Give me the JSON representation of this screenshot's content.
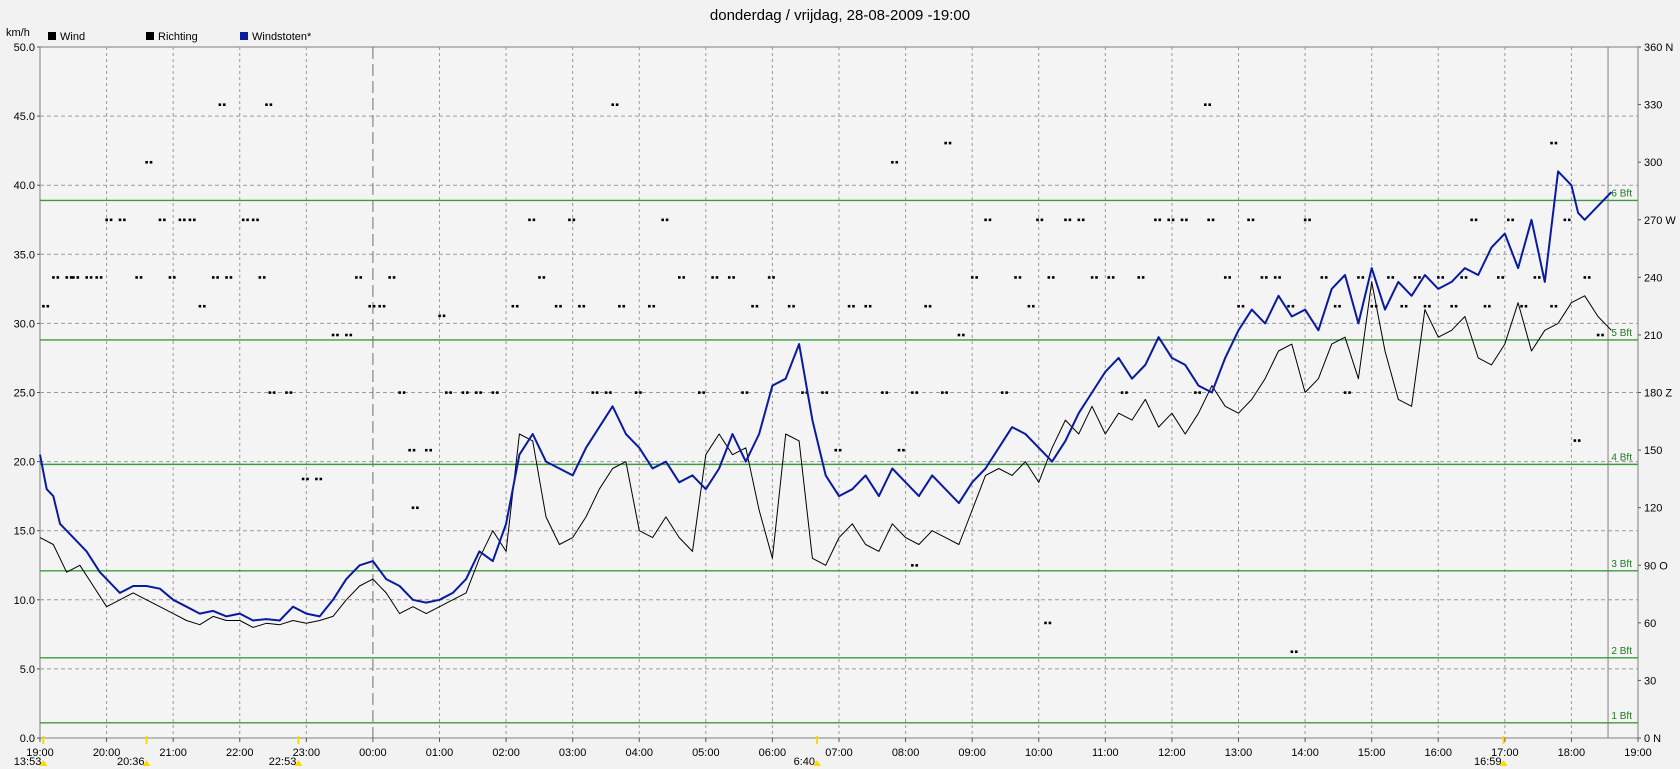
{
  "chart_data": {
    "type": "line",
    "title": "donderdag / vrijdag, 28-08-2009  -19:00",
    "y_unit": "km/h",
    "ylim": [
      0,
      50
    ],
    "y_ticks": [
      "0.0",
      "5.0",
      "10.0",
      "15.0",
      "20.0",
      "25.0",
      "30.0",
      "35.0",
      "40.0",
      "45.0",
      "50.0"
    ],
    "y2lim": [
      0,
      360
    ],
    "y2_ticks": [
      "0 N",
      "30",
      "60",
      "90 O",
      "120",
      "150",
      "180 Z",
      "210",
      "240",
      "270 W",
      "300",
      "330",
      "360 N"
    ],
    "x_ticks": [
      "19:00",
      "20:00",
      "21:00",
      "22:00",
      "23:00",
      "00:00",
      "01:00",
      "02:00",
      "03:00",
      "04:00",
      "05:00",
      "06:00",
      "07:00",
      "08:00",
      "09:00",
      "10:00",
      "11:00",
      "12:00",
      "13:00",
      "14:00",
      "15:00",
      "16:00",
      "17:00",
      "18:00",
      "19:00"
    ],
    "legend": [
      {
        "label": "Wind",
        "color": "#000000"
      },
      {
        "label": "Richting",
        "color": "#000000"
      },
      {
        "label": "Windstoten*",
        "color": "#0a1aa0"
      }
    ],
    "beaufort": [
      {
        "label": "1 Bft",
        "value": 1.1
      },
      {
        "label": "2 Bft",
        "value": 5.8
      },
      {
        "label": "3 Bft",
        "value": 12.1
      },
      {
        "label": "4 Bft",
        "value": 19.8
      },
      {
        "label": "5 Bft",
        "value": 28.8
      },
      {
        "label": "6 Bft",
        "value": 38.9
      }
    ],
    "midnight_hour": 5,
    "events": [
      {
        "label": "13:53",
        "hour": 0.05,
        "color": "#ffd800"
      },
      {
        "label": "20:36",
        "hour": 1.6,
        "color": "#ffd800"
      },
      {
        "label": "22:53",
        "hour": 3.88,
        "color": "#ffd800"
      },
      {
        "label": "6:40",
        "hour": 11.67,
        "color": "#ffd800"
      },
      {
        "label": "16:59",
        "hour": 21.98,
        "color": "#ffd800"
      }
    ],
    "series": [
      {
        "name": "Windstoten*",
        "color": "#0a1aa0",
        "x": [
          0,
          0.1,
          0.2,
          0.3,
          0.5,
          0.7,
          0.9,
          1.0,
          1.2,
          1.4,
          1.6,
          1.8,
          2.0,
          2.2,
          2.4,
          2.6,
          2.8,
          3.0,
          3.2,
          3.4,
          3.6,
          3.8,
          4.0,
          4.2,
          4.4,
          4.6,
          4.8,
          5.0,
          5.2,
          5.4,
          5.6,
          5.8,
          6.0,
          6.2,
          6.4,
          6.6,
          6.8,
          7.0,
          7.2,
          7.4,
          7.6,
          7.8,
          8.0,
          8.2,
          8.4,
          8.6,
          8.8,
          9.0,
          9.2,
          9.4,
          9.6,
          9.8,
          10.0,
          10.2,
          10.4,
          10.6,
          10.8,
          11.0,
          11.2,
          11.4,
          11.6,
          11.8,
          12.0,
          12.2,
          12.4,
          12.6,
          12.8,
          13.0,
          13.2,
          13.4,
          13.6,
          13.8,
          14.0,
          14.2,
          14.4,
          14.6,
          14.8,
          15.0,
          15.2,
          15.4,
          15.6,
          15.8,
          16.0,
          16.2,
          16.4,
          16.6,
          16.8,
          17.0,
          17.2,
          17.4,
          17.6,
          17.8,
          18.0,
          18.2,
          18.4,
          18.6,
          18.8,
          19.0,
          19.2,
          19.4,
          19.6,
          19.8,
          20.0,
          20.2,
          20.4,
          20.6,
          20.8,
          21.0,
          21.2,
          21.4,
          21.6,
          21.8,
          22.0,
          22.2,
          22.4,
          22.6,
          22.8,
          23.0,
          23.1,
          23.2,
          23.4,
          23.6
        ],
        "values": [
          20.5,
          18.0,
          17.5,
          15.5,
          14.5,
          13.5,
          12.0,
          11.5,
          10.5,
          11.0,
          11.0,
          10.8,
          10.0,
          9.5,
          9.0,
          9.2,
          8.8,
          9.0,
          8.5,
          8.6,
          8.5,
          9.5,
          9.0,
          8.8,
          10.0,
          11.5,
          12.5,
          12.8,
          11.5,
          11.0,
          10.0,
          9.8,
          10.0,
          10.5,
          11.5,
          13.5,
          12.8,
          15.5,
          20.5,
          22.0,
          20.0,
          19.5,
          19.0,
          21.0,
          22.5,
          24.0,
          22.0,
          21.0,
          19.5,
          20.0,
          18.5,
          19.0,
          18.0,
          19.5,
          22.0,
          20.0,
          22.0,
          25.5,
          26.0,
          28.5,
          23.0,
          19.0,
          17.5,
          18.0,
          19.0,
          17.5,
          19.5,
          18.5,
          17.5,
          19.0,
          18.0,
          17.0,
          18.5,
          19.5,
          21.0,
          22.5,
          22.0,
          21.0,
          20.0,
          21.5,
          23.5,
          25.0,
          26.5,
          27.5,
          26.0,
          27.0,
          29.0,
          27.5,
          27.0,
          25.5,
          25.0,
          27.5,
          29.5,
          31.0,
          30.0,
          32.0,
          30.5,
          31.0,
          29.5,
          32.5,
          33.5,
          30.0,
          34.0,
          31.0,
          33.0,
          32.0,
          33.5,
          32.5,
          33.0,
          34.0,
          33.5,
          35.5,
          36.5,
          34.0,
          37.5,
          33.0,
          41.0,
          40.0,
          38.0,
          37.5,
          38.5,
          39.5
        ]
      },
      {
        "name": "Wind",
        "color": "#000000",
        "x": [
          0,
          0.2,
          0.4,
          0.6,
          0.8,
          1.0,
          1.2,
          1.4,
          1.6,
          1.8,
          2.0,
          2.2,
          2.4,
          2.6,
          2.8,
          3.0,
          3.2,
          3.4,
          3.6,
          3.8,
          4.0,
          4.2,
          4.4,
          4.6,
          4.8,
          5.0,
          5.2,
          5.4,
          5.6,
          5.8,
          6.0,
          6.2,
          6.4,
          6.6,
          6.8,
          7.0,
          7.2,
          7.4,
          7.6,
          7.8,
          8.0,
          8.2,
          8.4,
          8.6,
          8.8,
          9.0,
          9.2,
          9.4,
          9.6,
          9.8,
          10.0,
          10.2,
          10.4,
          10.6,
          10.8,
          11.0,
          11.2,
          11.4,
          11.6,
          11.8,
          12.0,
          12.2,
          12.4,
          12.6,
          12.8,
          13.0,
          13.2,
          13.4,
          13.6,
          13.8,
          14.0,
          14.2,
          14.4,
          14.6,
          14.8,
          15.0,
          15.2,
          15.4,
          15.6,
          15.8,
          16.0,
          16.2,
          16.4,
          16.6,
          16.8,
          17.0,
          17.2,
          17.4,
          17.6,
          17.8,
          18.0,
          18.2,
          18.4,
          18.6,
          18.8,
          19.0,
          19.2,
          19.4,
          19.6,
          19.8,
          20.0,
          20.2,
          20.4,
          20.6,
          20.8,
          21.0,
          21.2,
          21.4,
          21.6,
          21.8,
          22.0,
          22.2,
          22.4,
          22.6,
          22.8,
          23.0,
          23.2,
          23.4,
          23.6
        ],
        "values": [
          14.5,
          14.0,
          12.0,
          12.5,
          11.0,
          9.5,
          10.0,
          10.5,
          10.0,
          9.5,
          9.0,
          8.5,
          8.2,
          8.8,
          8.5,
          8.5,
          8.0,
          8.3,
          8.2,
          8.5,
          8.3,
          8.5,
          8.8,
          10.0,
          11.0,
          11.5,
          10.5,
          9.0,
          9.5,
          9.0,
          9.5,
          10.0,
          10.5,
          13.0,
          15.0,
          13.5,
          22.0,
          21.5,
          16.0,
          14.0,
          14.5,
          16.0,
          18.0,
          19.5,
          20.0,
          15.0,
          14.5,
          16.0,
          14.5,
          13.5,
          20.5,
          22.0,
          20.5,
          21.0,
          16.5,
          13.0,
          22.0,
          21.5,
          13.0,
          12.5,
          14.5,
          15.5,
          14.0,
          13.5,
          15.5,
          14.5,
          14.0,
          15.0,
          14.5,
          14.0,
          16.5,
          19.0,
          19.5,
          19.0,
          20.0,
          18.5,
          21.0,
          23.0,
          22.0,
          24.0,
          22.0,
          23.5,
          23.0,
          24.5,
          22.5,
          23.5,
          22.0,
          23.5,
          25.5,
          24.0,
          23.5,
          24.5,
          26.0,
          28.0,
          28.5,
          25.0,
          26.0,
          28.5,
          29.0,
          26.0,
          33.0,
          28.0,
          24.5,
          24.0,
          31.0,
          29.0,
          29.5,
          30.5,
          27.5,
          27.0,
          28.5,
          31.5,
          28.0,
          29.5,
          30.0,
          31.5,
          32.0,
          30.5,
          29.5
        ]
      }
    ],
    "direction_deg": [
      [
        0.05,
        225
      ],
      [
        0.2,
        240
      ],
      [
        0.4,
        240
      ],
      [
        0.5,
        240
      ],
      [
        0.7,
        240
      ],
      [
        0.85,
        240
      ],
      [
        1.0,
        270
      ],
      [
        1.2,
        270
      ],
      [
        1.45,
        240
      ],
      [
        1.6,
        300
      ],
      [
        1.8,
        270
      ],
      [
        1.95,
        240
      ],
      [
        2.1,
        270
      ],
      [
        2.25,
        270
      ],
      [
        2.4,
        225
      ],
      [
        2.6,
        240
      ],
      [
        2.8,
        240
      ],
      [
        3.05,
        270
      ],
      [
        3.2,
        270
      ],
      [
        3.3,
        240
      ],
      [
        3.45,
        180
      ],
      [
        3.7,
        180
      ],
      [
        3.95,
        135
      ],
      [
        4.15,
        135
      ],
      [
        4.4,
        210
      ],
      [
        4.6,
        210
      ],
      [
        4.75,
        240
      ],
      [
        4.95,
        225
      ],
      [
        5.1,
        225
      ],
      [
        5.25,
        240
      ],
      [
        5.4,
        180
      ],
      [
        5.55,
        150
      ],
      [
        5.8,
        150
      ],
      [
        6.1,
        180
      ],
      [
        6.35,
        180
      ],
      [
        6.55,
        180
      ],
      [
        6.8,
        180
      ],
      [
        7.1,
        225
      ],
      [
        7.35,
        270
      ],
      [
        7.5,
        240
      ],
      [
        7.75,
        225
      ],
      [
        7.95,
        270
      ],
      [
        8.1,
        225
      ],
      [
        8.3,
        180
      ],
      [
        8.5,
        180
      ],
      [
        8.7,
        225
      ],
      [
        8.95,
        180
      ],
      [
        9.15,
        225
      ],
      [
        9.35,
        270
      ],
      [
        9.6,
        240
      ],
      [
        9.9,
        180
      ],
      [
        10.1,
        240
      ],
      [
        10.35,
        240
      ],
      [
        10.55,
        180
      ],
      [
        10.7,
        225
      ],
      [
        10.95,
        240
      ],
      [
        11.25,
        225
      ],
      [
        11.45,
        180
      ],
      [
        11.75,
        180
      ],
      [
        11.95,
        150
      ],
      [
        12.15,
        225
      ],
      [
        12.4,
        225
      ],
      [
        12.65,
        180
      ],
      [
        12.9,
        150
      ],
      [
        13.1,
        180
      ],
      [
        13.3,
        225
      ],
      [
        13.55,
        180
      ],
      [
        13.8,
        210
      ],
      [
        14.0,
        240
      ],
      [
        14.2,
        270
      ],
      [
        14.45,
        180
      ],
      [
        14.65,
        240
      ],
      [
        14.85,
        225
      ],
      [
        14.98,
        270
      ],
      [
        15.15,
        240
      ],
      [
        15.4,
        270
      ],
      [
        15.6,
        270
      ],
      [
        15.8,
        240
      ],
      [
        16.05,
        240
      ],
      [
        16.25,
        180
      ],
      [
        16.5,
        240
      ],
      [
        16.75,
        270
      ],
      [
        16.95,
        270
      ],
      [
        17.15,
        270
      ],
      [
        17.35,
        180
      ],
      [
        17.55,
        270
      ],
      [
        17.8,
        240
      ],
      [
        18.0,
        225
      ],
      [
        18.15,
        270
      ],
      [
        18.35,
        240
      ],
      [
        18.55,
        240
      ],
      [
        18.75,
        225
      ],
      [
        19.0,
        270
      ],
      [
        19.25,
        240
      ],
      [
        19.45,
        225
      ],
      [
        19.6,
        180
      ],
      [
        19.8,
        240
      ],
      [
        20.0,
        225
      ],
      [
        20.25,
        240
      ],
      [
        20.45,
        225
      ],
      [
        20.65,
        240
      ],
      [
        20.8,
        225
      ],
      [
        21.0,
        240
      ],
      [
        21.2,
        225
      ],
      [
        21.35,
        240
      ],
      [
        21.5,
        270
      ],
      [
        21.7,
        225
      ],
      [
        21.9,
        240
      ],
      [
        22.05,
        270
      ],
      [
        22.25,
        225
      ],
      [
        22.45,
        240
      ],
      [
        22.7,
        225
      ],
      [
        22.9,
        270
      ],
      [
        23.05,
        155
      ],
      [
        23.2,
        240
      ],
      [
        23.4,
        210
      ],
      [
        2.7,
        330
      ],
      [
        3.4,
        330
      ],
      [
        5.6,
        120
      ],
      [
        6.0,
        220
      ],
      [
        8.6,
        330
      ],
      [
        12.8,
        300
      ],
      [
        13.1,
        90
      ],
      [
        13.6,
        310
      ],
      [
        15.1,
        60
      ],
      [
        17.5,
        330
      ],
      [
        18.8,
        45
      ],
      [
        22.7,
        310
      ]
    ],
    "cursor_hour": 23.55
  }
}
